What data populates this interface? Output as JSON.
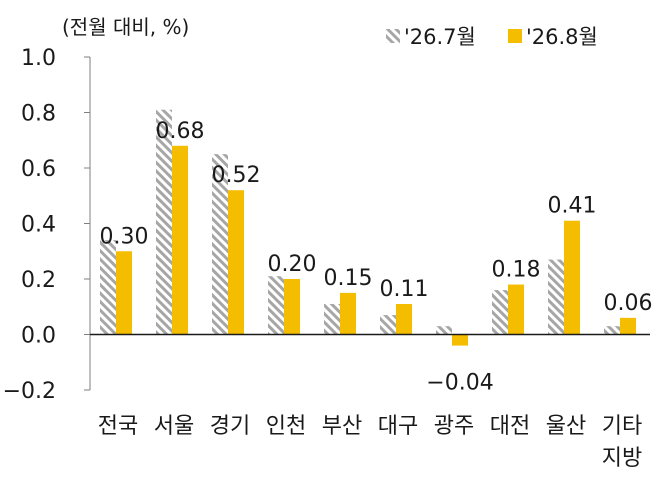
{
  "chart_data": {
    "type": "bar",
    "unit_label": "(전월 대비, %)",
    "categories": [
      "전국",
      "서울",
      "경기",
      "인천",
      "부산",
      "대구",
      "광주",
      "대전",
      "울산",
      "기타\n지방"
    ],
    "series": [
      {
        "name": "'26.7월",
        "values": [
          0.34,
          0.81,
          0.65,
          0.21,
          0.11,
          0.07,
          0.03,
          0.16,
          0.27,
          0.03
        ],
        "color": "#a6a6a6",
        "pattern": "diagonal-hatch",
        "show_labels": false
      },
      {
        "name": "'26.8월",
        "values": [
          0.3,
          0.68,
          0.52,
          0.2,
          0.15,
          0.11,
          -0.04,
          0.18,
          0.41,
          0.06
        ],
        "color": "#f5bd00",
        "pattern": "solid",
        "show_labels": true
      }
    ],
    "data_labels": [
      "0.30",
      "0.68",
      "0.52",
      "0.20",
      "0.15",
      "0.11",
      "−0.04",
      "0.18",
      "0.41",
      "0.06"
    ],
    "ylim": [
      -0.2,
      1.0
    ],
    "yticks": [
      "−0.2",
      "0.0",
      "0.2",
      "0.4",
      "0.6",
      "0.8",
      "1.0"
    ],
    "ytick_values": [
      -0.2,
      0.0,
      0.2,
      0.4,
      0.6,
      0.8,
      1.0
    ],
    "grid": false,
    "legend_position": "top-right"
  }
}
